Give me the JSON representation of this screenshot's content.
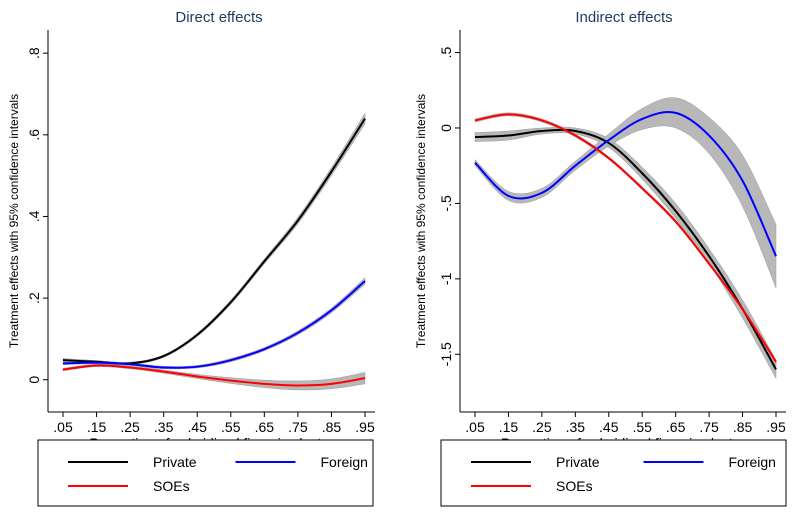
{
  "chart_data": [
    {
      "type": "line",
      "title": "Direct effects",
      "xlabel": "Proportion of subsidised firms in cluster",
      "ylabel": "Treatment effects  with 95% confidence intervals",
      "xlim": [
        0.05,
        0.95
      ],
      "ylim": [
        -0.03,
        0.82
      ],
      "x_ticks": [
        0.05,
        0.15,
        0.25,
        0.35,
        0.45,
        0.55,
        0.65,
        0.75,
        0.85,
        0.95
      ],
      "x_tick_labels": [
        ".05",
        ".15",
        ".25",
        ".35",
        ".45",
        ".55",
        ".65",
        ".75",
        ".85",
        ".95"
      ],
      "y_ticks": [
        0,
        0.2,
        0.4,
        0.6,
        0.8
      ],
      "y_tick_labels": [
        "0",
        ".2",
        ".4",
        ".6",
        ".8"
      ],
      "grid": false,
      "legend": "bottom",
      "x": [
        0.05,
        0.15,
        0.25,
        0.35,
        0.45,
        0.55,
        0.65,
        0.75,
        0.85,
        0.95
      ],
      "series": [
        {
          "name": "Private",
          "color": "#000000",
          "values": [
            0.048,
            0.044,
            0.04,
            0.058,
            0.11,
            0.19,
            0.29,
            0.39,
            0.51,
            0.64
          ],
          "ci_half": [
            0.004,
            0.003,
            0.003,
            0.003,
            0.004,
            0.005,
            0.006,
            0.008,
            0.01,
            0.013
          ]
        },
        {
          "name": "Foreign",
          "color": "#0000ff",
          "values": [
            0.04,
            0.042,
            0.038,
            0.03,
            0.032,
            0.048,
            0.075,
            0.115,
            0.17,
            0.242
          ],
          "ci_half": [
            0.003,
            0.003,
            0.003,
            0.003,
            0.003,
            0.004,
            0.004,
            0.005,
            0.006,
            0.008
          ]
        },
        {
          "name": "SOEs",
          "color": "#ff0000",
          "values": [
            0.025,
            0.035,
            0.03,
            0.02,
            0.008,
            -0.002,
            -0.01,
            -0.014,
            -0.01,
            0.004
          ],
          "ci_half": [
            0.003,
            0.003,
            0.003,
            0.004,
            0.005,
            0.007,
            0.009,
            0.011,
            0.012,
            0.014
          ]
        }
      ]
    },
    {
      "type": "line",
      "title": "Indirect effects",
      "xlabel": "Proportion of subsidised firms in cluster",
      "ylabel": "Treatment effects  with 95% confidence intervals",
      "xlim": [
        0.05,
        0.95
      ],
      "ylim": [
        -1.75,
        0.55
      ],
      "x_ticks": [
        0.05,
        0.15,
        0.25,
        0.35,
        0.45,
        0.55,
        0.65,
        0.75,
        0.85,
        0.95
      ],
      "x_tick_labels": [
        ".05",
        ".15",
        ".25",
        ".35",
        ".45",
        ".55",
        ".65",
        ".75",
        ".85",
        ".95"
      ],
      "y_ticks": [
        -1.5,
        -1,
        -0.5,
        0,
        0.5
      ],
      "y_tick_labels": [
        "-1.5",
        "-1",
        "-.5",
        "0",
        ".5"
      ],
      "grid": false,
      "legend": "bottom",
      "x": [
        0.05,
        0.15,
        0.25,
        0.35,
        0.45,
        0.55,
        0.65,
        0.75,
        0.85,
        0.95
      ],
      "series": [
        {
          "name": "Private",
          "color": "#000000",
          "values": [
            -0.06,
            -0.05,
            -0.02,
            -0.02,
            -0.1,
            -0.3,
            -0.55,
            -0.85,
            -1.2,
            -1.6
          ],
          "ci_half": [
            0.03,
            0.03,
            0.02,
            0.02,
            0.03,
            0.04,
            0.05,
            0.05,
            0.06,
            0.06
          ]
        },
        {
          "name": "Foreign",
          "color": "#0000ff",
          "values": [
            -0.23,
            -0.45,
            -0.43,
            -0.25,
            -0.08,
            0.06,
            0.1,
            -0.05,
            -0.35,
            -0.85
          ],
          "ci_half": [
            0.02,
            0.03,
            0.03,
            0.03,
            0.04,
            0.07,
            0.1,
            0.12,
            0.17,
            0.21
          ]
        },
        {
          "name": "SOEs",
          "color": "#ff0000",
          "values": [
            0.05,
            0.09,
            0.05,
            -0.05,
            -0.2,
            -0.4,
            -0.62,
            -0.9,
            -1.2,
            -1.55
          ],
          "ci_half": [
            0.01,
            0.01,
            0.01,
            0.01,
            0.01,
            0.01,
            0.01,
            0.01,
            0.01,
            0.01
          ]
        }
      ]
    }
  ],
  "ci_fill_color": "#b8b8b8",
  "legend": {
    "entries": [
      {
        "label": "Private",
        "color": "#000000"
      },
      {
        "label": "Foreign",
        "color": "#0000ff"
      },
      {
        "label": "SOEs",
        "color": "#ff0000"
      }
    ]
  }
}
